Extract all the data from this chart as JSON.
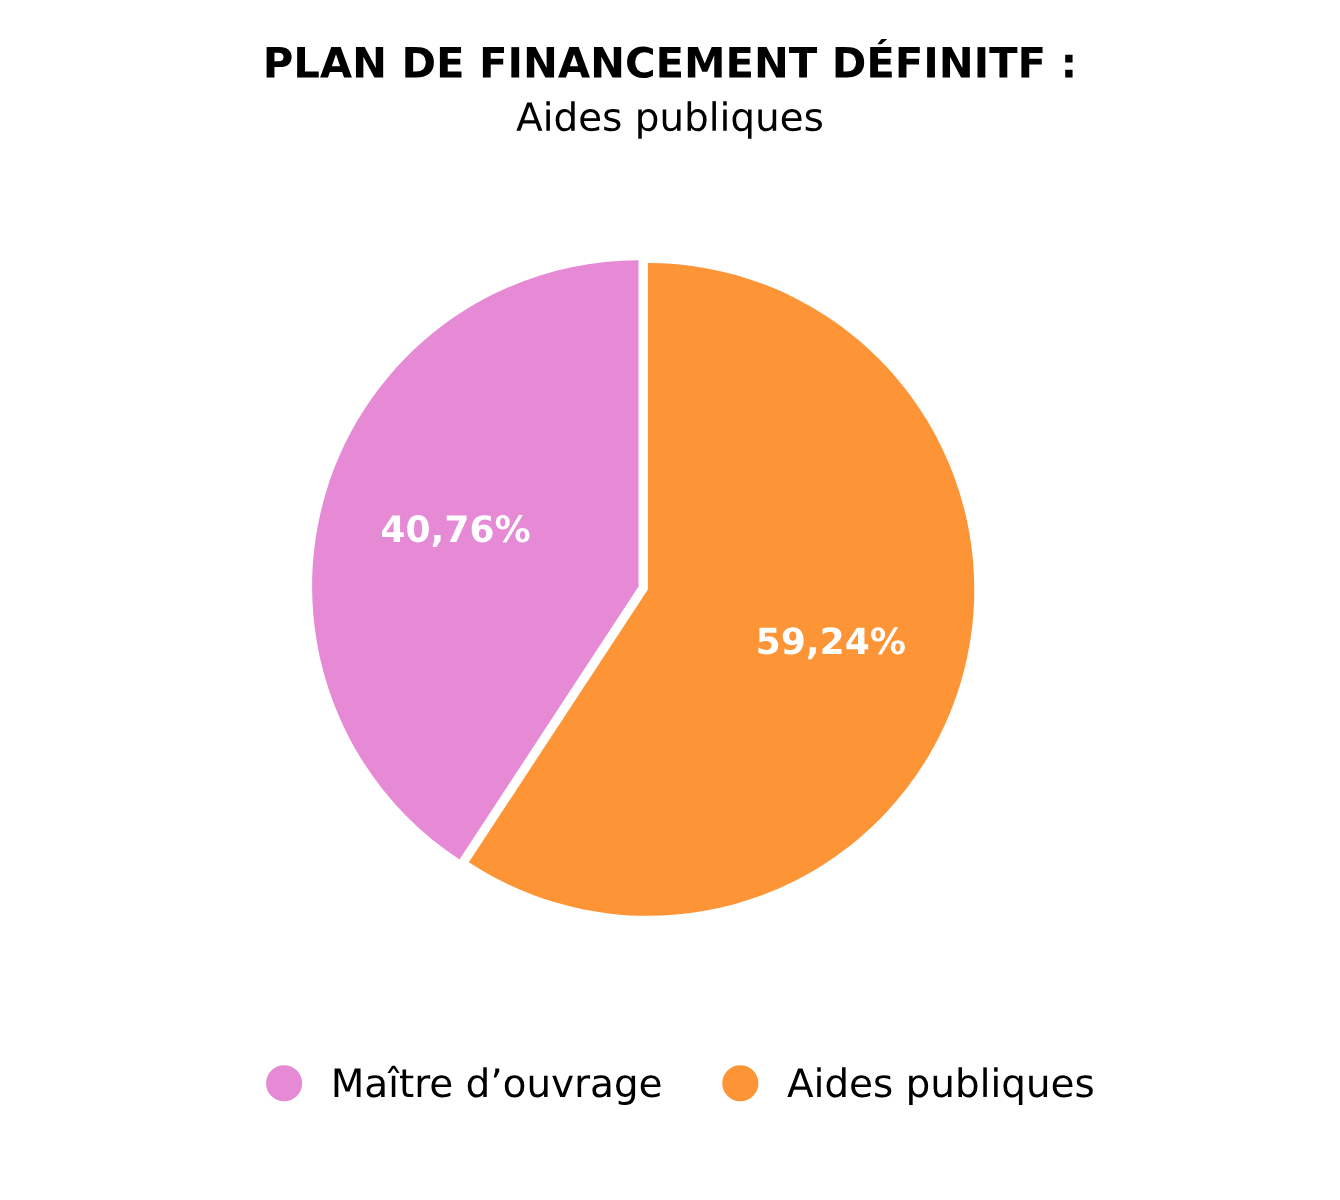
{
  "chart_data": {
    "type": "pie",
    "title": "PLAN DE FINANCEMENT DÉFINITF :",
    "subtitle": "Aides publiques",
    "categories": [
      "Maître d’ouvrage",
      "Aides publiques"
    ],
    "values": [
      40.76,
      59.24
    ],
    "colors": [
      "#e68ad6",
      "#fd9436"
    ],
    "value_labels": [
      "40,76%",
      "59,24%"
    ],
    "legend": "bottom"
  }
}
